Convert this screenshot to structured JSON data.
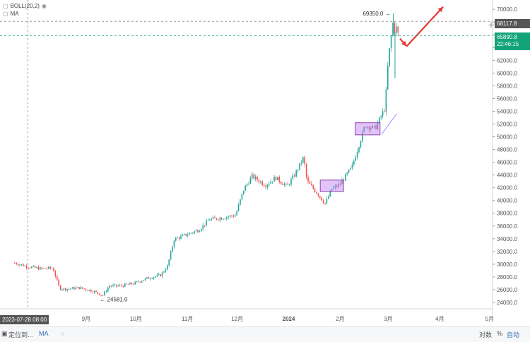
{
  "indicators": {
    "boll": "BOLL(20,2)",
    "ma": "MA"
  },
  "crosshair": {
    "price_label": "68117.8",
    "date_label": "2023-07-28 08:00"
  },
  "last_price": {
    "value": "65890.8",
    "countdown": "22:46:15",
    "color": "#12a37a"
  },
  "high_label": "69350.0",
  "low_label": "24581.0",
  "bottom_bar": {
    "left_text": "定位到...",
    "ma": "MA",
    "log": "对数",
    "percent": "%",
    "auto": "自动"
  },
  "chart_data": {
    "type": "candlestick",
    "title": "",
    "ylim": [
      23000,
      70800
    ],
    "y_ticks": [
      24000,
      26000,
      28000,
      30000,
      32000,
      34000,
      36000,
      38000,
      40000,
      42000,
      44000,
      46000,
      48000,
      50000,
      52000,
      54000,
      56000,
      58000,
      60000,
      62000,
      64000,
      66000,
      68000,
      70000
    ],
    "y_tick_labels": [
      "24000.0",
      "26000.0",
      "28000.0",
      "30000.0",
      "32000.0",
      "34000.0",
      "36000.0",
      "38000.0",
      "40000.0",
      "42000.0",
      "44000.0",
      "46000.0",
      "48000.0",
      "50000.0",
      "52000.0",
      "54000.0",
      "56000.0",
      "58000.0",
      "60000.0",
      "62000.0",
      "64000.0",
      "66000.0",
      "68000.0",
      "70000.0"
    ],
    "x_ticks": [
      "9月",
      "10月",
      "11月",
      "12月",
      "2024",
      "2月",
      "3月",
      "4月",
      "5月"
    ],
    "up_color": "#26a69a",
    "down_color": "#ef5350",
    "series": [
      {
        "name": "price",
        "points": [
          [
            "07-20",
            30200
          ],
          [
            "07-28",
            29600
          ],
          [
            "08-05",
            29300
          ],
          [
            "08-12",
            29400
          ],
          [
            "08-16",
            26200
          ],
          [
            "08-20",
            26100
          ],
          [
            "08-28",
            26300
          ],
          [
            "09-05",
            25800
          ],
          [
            "09-11",
            25100
          ],
          [
            "09-15",
            26600
          ],
          [
            "09-22",
            26600
          ],
          [
            "09-30",
            27000
          ],
          [
            "10-08",
            27800
          ],
          [
            "10-16",
            28300
          ],
          [
            "10-20",
            29700
          ],
          [
            "10-24",
            33900
          ],
          [
            "10-31",
            34600
          ],
          [
            "11-08",
            35400
          ],
          [
            "11-14",
            37000
          ],
          [
            "11-22",
            37300
          ],
          [
            "11-30",
            37700
          ],
          [
            "12-05",
            41800
          ],
          [
            "12-10",
            43800
          ],
          [
            "12-18",
            42400
          ],
          [
            "12-24",
            43600
          ],
          [
            "12-31",
            42200
          ],
          [
            "01-05",
            44200
          ],
          [
            "01-10",
            46800
          ],
          [
            "01-12",
            43000
          ],
          [
            "01-18",
            41200
          ],
          [
            "01-23",
            39500
          ],
          [
            "01-27",
            41800
          ],
          [
            "02-01",
            42600
          ],
          [
            "02-08",
            45200
          ],
          [
            "02-12",
            48500
          ],
          [
            "02-16",
            51800
          ],
          [
            "02-22",
            51300
          ],
          [
            "02-28",
            54500
          ],
          [
            "03-01",
            62200
          ],
          [
            "03-04",
            68300
          ],
          [
            "03-05",
            66200
          ],
          [
            "03-06",
            67300
          ],
          [
            "03-07",
            65890
          ]
        ]
      }
    ],
    "annotations": [
      {
        "type": "box",
        "x": [
          "01-20",
          "02-03"
        ],
        "y": [
          41400,
          43200
        ],
        "color": "#c27cf5"
      },
      {
        "type": "box",
        "x": [
          "02-10",
          "02-25"
        ],
        "y": [
          50300,
          52200
        ],
        "color": "#c27cf5"
      },
      {
        "type": "arrow",
        "from": [
          "03-08",
          65400
        ],
        "to": [
          "03-12",
          64200
        ],
        "color": "#e53935"
      },
      {
        "type": "arrow",
        "from": [
          "03-12",
          64200
        ],
        "to": [
          "04-03",
          70400
        ],
        "color": "#e53935"
      },
      {
        "type": "line",
        "from": [
          "02-26",
          50400
        ],
        "to": [
          "03-06",
          53600
        ],
        "color": "#b388ff"
      }
    ]
  }
}
